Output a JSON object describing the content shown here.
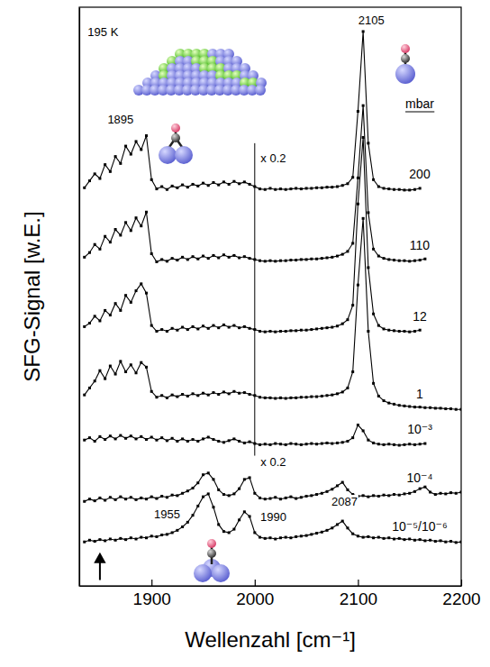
{
  "chart_data": {
    "type": "line",
    "x_label": "Wellenzahl [cm⁻¹]",
    "y_label": "SFG-Signal [w.E.]",
    "xlim": [
      1830,
      2200
    ],
    "xticks": [
      1900,
      2000,
      2100,
      2200
    ],
    "ylim": [
      0,
      100
    ],
    "tick_labels": "x",
    "grid": false,
    "marker": "square",
    "line_style": "solid",
    "legend_title": "mbar",
    "x": [
      1835,
      1840,
      1845,
      1850,
      1855,
      1860,
      1865,
      1870,
      1875,
      1880,
      1885,
      1890,
      1895,
      1900,
      1905,
      1910,
      1915,
      1920,
      1925,
      1930,
      1935,
      1940,
      1945,
      1950,
      1955,
      1960,
      1965,
      1970,
      1975,
      1980,
      1985,
      1990,
      1995,
      2000,
      2005,
      2010,
      2015,
      2020,
      2025,
      2030,
      2035,
      2040,
      2045,
      2050,
      2055,
      2060,
      2065,
      2070,
      2075,
      2080,
      2085,
      2090,
      2095,
      2100,
      2105,
      2110,
      2115,
      2120,
      2125,
      2130,
      2135,
      2140,
      2145,
      2150,
      2155,
      2160,
      2165,
      2170,
      2175,
      2180,
      2185,
      2190,
      2195,
      2200
    ],
    "series": [
      {
        "name": "200",
        "color": "#000000",
        "values": [
          68.8,
          70.0,
          71.2,
          70.4,
          72.8,
          71.6,
          74.2,
          73.0,
          76.0,
          74.6,
          76.8,
          75.4,
          77.8,
          70.2,
          68.6,
          69.0,
          68.5,
          69.1,
          68.8,
          69.3,
          68.9,
          69.4,
          69.1,
          69.6,
          69.2,
          69.7,
          69.3,
          69.8,
          69.4,
          69.9,
          69.5,
          69.8,
          69.4,
          69.0,
          68.6,
          68.5,
          68.7,
          68.5,
          68.6,
          68.5,
          68.6,
          68.7,
          68.6,
          68.7,
          68.7,
          68.8,
          68.8,
          68.9,
          68.9,
          69.0,
          69.2,
          69.5,
          70.6,
          82.0,
          95.8,
          76.5,
          70.2,
          69.0,
          68.7,
          68.6,
          68.5,
          68.5,
          68.4,
          68.4,
          68.5,
          68.7,
          null,
          null,
          null,
          null,
          null,
          null,
          null,
          null
        ]
      },
      {
        "name": "110",
        "color": "#000000",
        "values": [
          56.8,
          57.6,
          59.0,
          58.2,
          60.4,
          59.4,
          61.6,
          60.6,
          62.8,
          61.4,
          63.6,
          62.2,
          64.6,
          57.4,
          56.0,
          56.4,
          56.1,
          56.6,
          56.3,
          56.8,
          56.4,
          56.9,
          56.5,
          57.0,
          56.6,
          57.1,
          56.7,
          57.2,
          56.8,
          57.1,
          56.7,
          56.9,
          56.6,
          56.4,
          56.2,
          56.1,
          56.2,
          56.1,
          56.2,
          56.2,
          56.3,
          56.3,
          56.4,
          56.4,
          56.5,
          56.5,
          56.6,
          56.7,
          56.8,
          57.0,
          57.3,
          57.8,
          59.2,
          70.5,
          83.0,
          64.5,
          58.2,
          57.0,
          56.6,
          56.4,
          56.3,
          56.2,
          56.2,
          56.1,
          56.2,
          56.3,
          56.5,
          null,
          null,
          null,
          null,
          null,
          null,
          null
        ]
      },
      {
        "name": "12",
        "color": "#000000",
        "values": [
          44.8,
          45.4,
          46.6,
          45.8,
          47.6,
          46.8,
          48.8,
          47.6,
          50.2,
          49.0,
          51.0,
          52.2,
          50.6,
          45.0,
          44.0,
          44.3,
          44.0,
          44.5,
          44.2,
          44.7,
          44.3,
          44.8,
          44.4,
          44.9,
          44.5,
          45.0,
          44.6,
          45.1,
          44.7,
          45.0,
          44.6,
          44.8,
          44.5,
          44.3,
          44.0,
          43.9,
          44.0,
          43.9,
          44.0,
          44.0,
          44.1,
          44.1,
          44.2,
          44.2,
          44.3,
          44.4,
          44.5,
          44.6,
          44.7,
          44.9,
          45.3,
          46.0,
          48.5,
          66.0,
          77.5,
          55.0,
          47.0,
          45.0,
          44.4,
          44.2,
          44.1,
          44.0,
          44.0,
          43.9,
          44.0,
          44.2,
          null,
          null,
          null,
          null,
          null,
          null,
          null,
          null
        ]
      },
      {
        "name": "1",
        "color": "#000000",
        "values": [
          33.0,
          34.2,
          35.4,
          37.2,
          35.8,
          38.0,
          36.6,
          38.8,
          37.0,
          38.2,
          36.8,
          38.6,
          37.8,
          33.6,
          32.6,
          32.9,
          32.5,
          33.0,
          32.7,
          33.1,
          32.8,
          33.2,
          32.9,
          33.3,
          33.0,
          33.4,
          33.1,
          33.5,
          33.2,
          33.6,
          33.3,
          33.4,
          33.1,
          32.9,
          32.6,
          32.5,
          32.5,
          32.4,
          32.5,
          32.4,
          32.5,
          32.5,
          32.6,
          32.6,
          32.7,
          32.7,
          32.8,
          32.9,
          33.0,
          33.2,
          33.5,
          34.2,
          37.0,
          52.0,
          63.5,
          44.0,
          35.0,
          32.8,
          32.0,
          31.6,
          31.4,
          31.2,
          31.1,
          31.0,
          30.9,
          30.9,
          30.8,
          30.8,
          30.7,
          30.7,
          30.6,
          30.6,
          30.5,
          30.5
        ]
      },
      {
        "name": "10⁻³",
        "color": "#000000",
        "values": [
          25.2,
          25.6,
          25.0,
          25.8,
          25.3,
          25.9,
          25.4,
          26.0,
          25.5,
          25.9,
          25.4,
          25.8,
          25.3,
          25.7,
          25.2,
          25.6,
          25.1,
          25.5,
          25.0,
          25.4,
          25.0,
          25.3,
          25.0,
          25.4,
          25.7,
          25.3,
          25.0,
          24.8,
          25.1,
          25.4,
          25.0,
          24.7,
          24.9,
          24.6,
          24.4,
          24.5,
          24.4,
          24.6,
          24.5,
          24.4,
          24.6,
          24.5,
          24.4,
          24.5,
          24.6,
          24.5,
          24.6,
          24.7,
          24.6,
          24.7,
          24.8,
          25.0,
          25.6,
          27.8,
          26.8,
          25.2,
          24.7,
          24.5,
          24.4,
          24.5,
          24.4,
          24.3,
          24.4,
          24.5,
          24.4,
          24.5,
          24.6,
          null,
          null,
          null,
          null,
          null,
          null,
          null
        ]
      },
      {
        "name": "10⁻⁴",
        "color": "#000000",
        "values": [
          14.6,
          15.0,
          14.7,
          15.2,
          14.8,
          15.3,
          14.9,
          15.4,
          15.0,
          15.3,
          14.9,
          15.2,
          15.0,
          15.4,
          15.1,
          15.5,
          15.3,
          15.7,
          15.6,
          16.0,
          16.4,
          16.9,
          17.8,
          19.2,
          19.5,
          18.4,
          16.6,
          15.8,
          15.6,
          15.9,
          16.8,
          18.4,
          18.7,
          16.0,
          15.2,
          15.0,
          15.1,
          15.3,
          15.0,
          15.2,
          15.4,
          15.1,
          15.3,
          15.5,
          15.6,
          15.8,
          16.0,
          16.3,
          16.7,
          17.3,
          17.9,
          16.6,
          15.8,
          15.5,
          15.6,
          15.4,
          15.6,
          15.5,
          15.7,
          15.6,
          15.8,
          15.7,
          15.9,
          16.0,
          16.3,
          16.8,
          17.1,
          16.2,
          15.8,
          16.0,
          15.9,
          16.1,
          16.0,
          16.2
        ]
      },
      {
        "name": "10⁻⁵/10⁻⁶",
        "color": "#000000",
        "values": [
          7.6,
          7.9,
          7.7,
          8.0,
          7.8,
          8.1,
          7.9,
          8.2,
          8.0,
          8.3,
          8.1,
          8.4,
          8.3,
          8.6,
          8.5,
          8.8,
          8.9,
          9.2,
          9.6,
          10.2,
          11.0,
          12.2,
          13.8,
          15.4,
          15.9,
          13.6,
          10.6,
          9.4,
          9.2,
          9.8,
          11.4,
          12.8,
          12.0,
          9.2,
          8.4,
          8.2,
          8.3,
          8.1,
          8.3,
          8.4,
          8.3,
          8.5,
          8.6,
          8.7,
          8.9,
          9.1,
          9.3,
          9.6,
          10.0,
          10.6,
          11.2,
          10.0,
          9.0,
          8.6,
          8.4,
          8.5,
          8.3,
          8.4,
          8.2,
          8.3,
          8.1,
          8.2,
          8.0,
          8.1,
          7.9,
          8.0,
          7.8,
          7.9,
          7.7,
          7.8,
          7.6,
          7.7,
          7.5,
          7.6
        ]
      }
    ],
    "annotations": [
      {
        "text": "195 K",
        "x": 1853,
        "y": 95.5
      },
      {
        "text": "1895",
        "x": 1870,
        "y": 80.5
      },
      {
        "text": "2105",
        "x": 2113,
        "y": 97.5
      },
      {
        "text": "x 0.2",
        "x": 2018,
        "y": 73.8
      },
      {
        "text": "x 0.2",
        "x": 2018,
        "y": 21.2
      },
      {
        "text": "1955",
        "x": 1915,
        "y": 12.2
      },
      {
        "text": "1990",
        "x": 2018,
        "y": 11.8
      },
      {
        "text": "2087",
        "x": 2087,
        "y": 14.4
      }
    ],
    "divider": {
      "x": 2000,
      "y": [
        22.5,
        76.5
      ]
    },
    "arrow": {
      "x": 1850,
      "y": [
        1.0,
        5.5
      ]
    }
  }
}
